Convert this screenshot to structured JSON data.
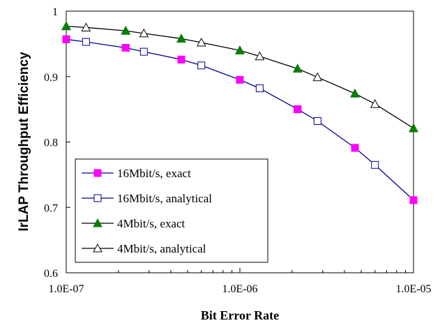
{
  "chart_data": {
    "type": "line",
    "xlabel": "Bit Error Rate",
    "ylabel": "IrLAP Throughput Efficiency",
    "x_scale": "log",
    "xlim": [
      1e-07,
      1e-05
    ],
    "ylim": [
      0.6,
      1.0
    ],
    "x_ticks": [
      1e-07,
      1e-06,
      1e-05
    ],
    "x_tick_labels": [
      "1.0E-07",
      "1.0E-06",
      "1.0E-05"
    ],
    "y_ticks": [
      0.6,
      0.7,
      0.8,
      0.9,
      1.0
    ],
    "y_tick_labels": [
      "0.6",
      "0.7",
      "0.8",
      "0.9",
      "1"
    ],
    "grid": false,
    "legend_position": "bottom-left",
    "series": [
      {
        "name": "16Mbit/s, exact",
        "color": "#ff00ff",
        "marker": "filled-square",
        "x": [
          1e-07,
          2.2e-07,
          4.6e-07,
          1e-06,
          2.15e-06,
          4.6e-06,
          1e-05
        ],
        "y": [
          0.957,
          0.944,
          0.926,
          0.895,
          0.85,
          0.791,
          0.711
        ]
      },
      {
        "name": "16Mbit/s, analytical",
        "color": "#00008b",
        "marker": "open-square",
        "x": [
          1e-07,
          1.3e-07,
          2.2e-07,
          2.8e-07,
          4.6e-07,
          6e-07,
          1e-06,
          1.3e-06,
          2.15e-06,
          2.8e-06,
          4.6e-06,
          6e-06,
          1e-05
        ],
        "y": [
          0.957,
          0.953,
          0.944,
          0.938,
          0.926,
          0.917,
          0.895,
          0.882,
          0.85,
          0.832,
          0.791,
          0.765,
          0.711
        ]
      },
      {
        "name": "4Mbit/s, exact",
        "color": "#008000",
        "marker": "filled-triangle",
        "x": [
          1e-07,
          2.2e-07,
          4.6e-07,
          1e-06,
          2.15e-06,
          4.6e-06,
          1e-05
        ],
        "y": [
          0.977,
          0.97,
          0.958,
          0.94,
          0.912,
          0.874,
          0.821
        ]
      },
      {
        "name": "4Mbit/s, analytical",
        "color": "#000000",
        "marker": "open-triangle",
        "x": [
          1e-07,
          1.3e-07,
          2.2e-07,
          2.8e-07,
          4.6e-07,
          6e-07,
          1e-06,
          1.3e-06,
          2.15e-06,
          2.8e-06,
          4.6e-06,
          6e-06,
          1e-05
        ],
        "y": [
          0.977,
          0.975,
          0.97,
          0.966,
          0.958,
          0.952,
          0.94,
          0.931,
          0.912,
          0.899,
          0.874,
          0.858,
          0.821
        ]
      }
    ]
  }
}
